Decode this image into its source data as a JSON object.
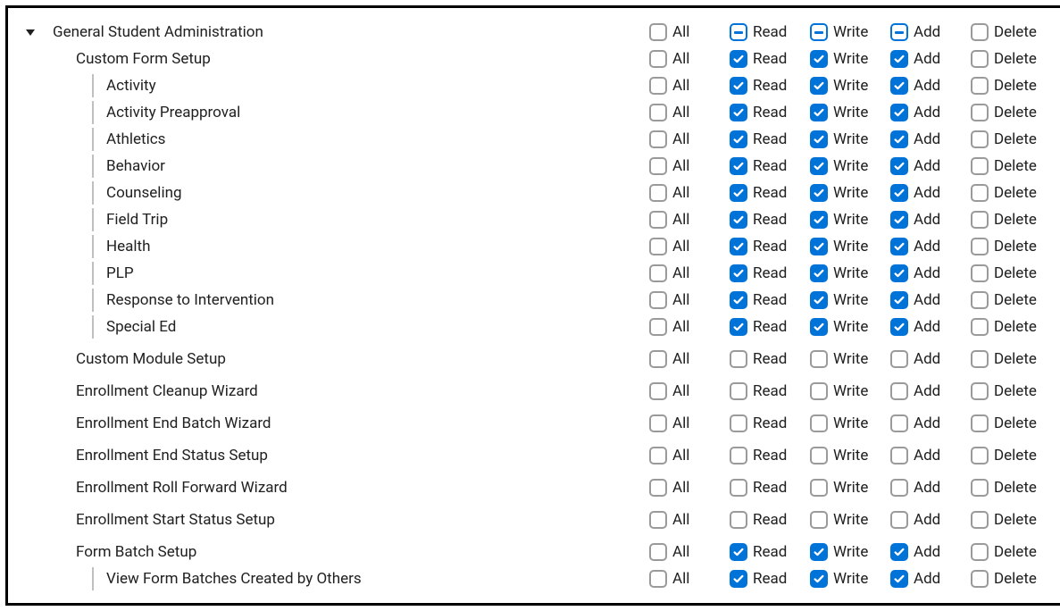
{
  "colors": {
    "checked_bg": "#0073d9",
    "border_gray": "#9a9a99",
    "text": "#202020",
    "bar": "#c0c0c0"
  },
  "perm_labels": {
    "all": "All",
    "read": "Read",
    "write": "Write",
    "add": "Add",
    "delete": "Delete"
  },
  "rows": [
    {
      "label": "General Student Administration",
      "indent": 0,
      "caret": true,
      "bar": false,
      "all": "unchecked",
      "read": "indeterminate",
      "write": "indeterminate",
      "add": "indeterminate",
      "delete": "unchecked"
    },
    {
      "label": "Custom Form Setup",
      "indent": 1,
      "caret": false,
      "bar": false,
      "all": "unchecked",
      "read": "checked",
      "write": "checked",
      "add": "checked",
      "delete": "unchecked"
    },
    {
      "label": "Activity",
      "indent": 2,
      "caret": false,
      "bar": true,
      "all": "unchecked",
      "read": "checked",
      "write": "checked",
      "add": "checked",
      "delete": "unchecked"
    },
    {
      "label": "Activity Preapproval",
      "indent": 2,
      "caret": false,
      "bar": true,
      "all": "unchecked",
      "read": "checked",
      "write": "checked",
      "add": "checked",
      "delete": "unchecked"
    },
    {
      "label": "Athletics",
      "indent": 2,
      "caret": false,
      "bar": true,
      "all": "unchecked",
      "read": "checked",
      "write": "checked",
      "add": "checked",
      "delete": "unchecked"
    },
    {
      "label": "Behavior",
      "indent": 2,
      "caret": false,
      "bar": true,
      "all": "unchecked",
      "read": "checked",
      "write": "checked",
      "add": "checked",
      "delete": "unchecked"
    },
    {
      "label": "Counseling",
      "indent": 2,
      "caret": false,
      "bar": true,
      "all": "unchecked",
      "read": "checked",
      "write": "checked",
      "add": "checked",
      "delete": "unchecked"
    },
    {
      "label": "Field Trip",
      "indent": 2,
      "caret": false,
      "bar": true,
      "all": "unchecked",
      "read": "checked",
      "write": "checked",
      "add": "checked",
      "delete": "unchecked"
    },
    {
      "label": "Health",
      "indent": 2,
      "caret": false,
      "bar": true,
      "all": "unchecked",
      "read": "checked",
      "write": "checked",
      "add": "checked",
      "delete": "unchecked"
    },
    {
      "label": "PLP",
      "indent": 2,
      "caret": false,
      "bar": true,
      "all": "unchecked",
      "read": "checked",
      "write": "checked",
      "add": "checked",
      "delete": "unchecked"
    },
    {
      "label": "Response to Intervention",
      "indent": 2,
      "caret": false,
      "bar": true,
      "all": "unchecked",
      "read": "checked",
      "write": "checked",
      "add": "checked",
      "delete": "unchecked"
    },
    {
      "label": "Special Ed",
      "indent": 2,
      "caret": false,
      "bar": true,
      "all": "unchecked",
      "read": "checked",
      "write": "checked",
      "add": "checked",
      "delete": "unchecked"
    },
    {
      "label": "Custom Module Setup",
      "indent": 1,
      "caret": false,
      "bar": false,
      "spacer": true,
      "all": "unchecked",
      "read": "unchecked",
      "write": "unchecked",
      "add": "unchecked",
      "delete": "unchecked"
    },
    {
      "label": "Enrollment Cleanup Wizard",
      "indent": 1,
      "caret": false,
      "bar": false,
      "spacer": true,
      "all": "unchecked",
      "read": "unchecked",
      "write": "unchecked",
      "add": "unchecked",
      "delete": "unchecked"
    },
    {
      "label": "Enrollment End Batch Wizard",
      "indent": 1,
      "caret": false,
      "bar": false,
      "spacer": true,
      "all": "unchecked",
      "read": "unchecked",
      "write": "unchecked",
      "add": "unchecked",
      "delete": "unchecked"
    },
    {
      "label": "Enrollment End Status Setup",
      "indent": 1,
      "caret": false,
      "bar": false,
      "spacer": true,
      "all": "unchecked",
      "read": "unchecked",
      "write": "unchecked",
      "add": "unchecked",
      "delete": "unchecked"
    },
    {
      "label": "Enrollment Roll Forward Wizard",
      "indent": 1,
      "caret": false,
      "bar": false,
      "spacer": true,
      "all": "unchecked",
      "read": "unchecked",
      "write": "unchecked",
      "add": "unchecked",
      "delete": "unchecked"
    },
    {
      "label": "Enrollment Start Status Setup",
      "indent": 1,
      "caret": false,
      "bar": false,
      "spacer": true,
      "all": "unchecked",
      "read": "unchecked",
      "write": "unchecked",
      "add": "unchecked",
      "delete": "unchecked"
    },
    {
      "label": "Form Batch Setup",
      "indent": 1,
      "caret": false,
      "bar": false,
      "spacer": true,
      "all": "unchecked",
      "read": "checked",
      "write": "checked",
      "add": "checked",
      "delete": "unchecked"
    },
    {
      "label": "View Form Batches Created by Others",
      "indent": 2,
      "caret": false,
      "bar": true,
      "all": "unchecked",
      "read": "checked",
      "write": "checked",
      "add": "checked",
      "delete": "unchecked"
    }
  ]
}
